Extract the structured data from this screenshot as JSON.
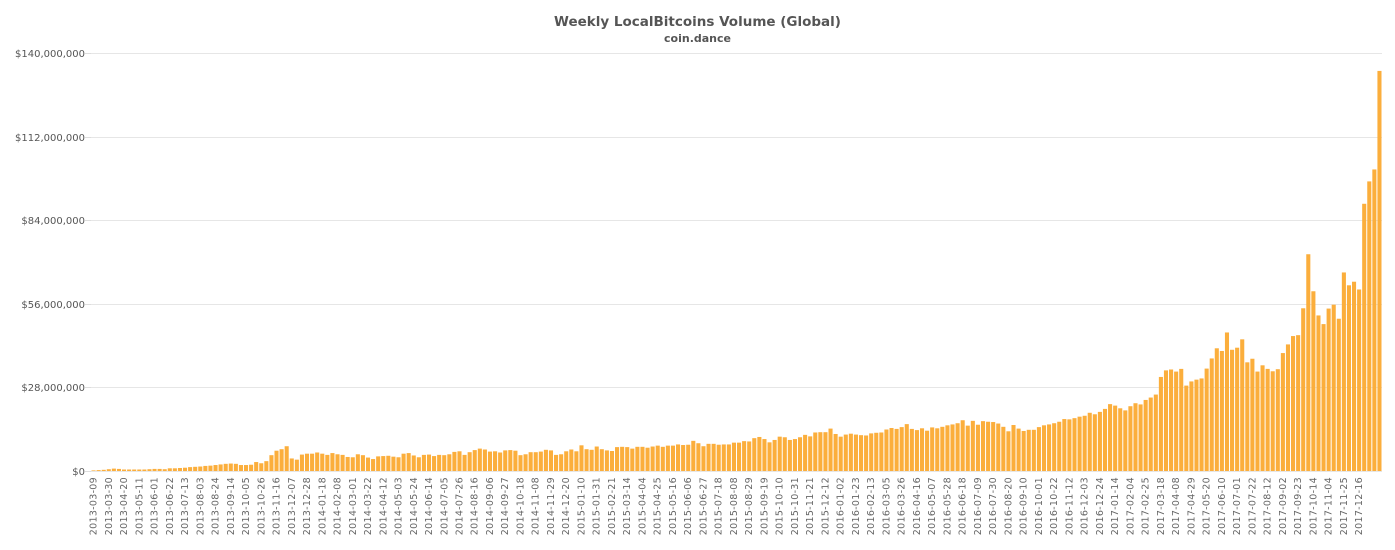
{
  "chart_data": {
    "type": "bar",
    "title": "Weekly LocalBitcoins Volume (Global)",
    "subtitle": "coin.dance",
    "xlabel": "",
    "ylabel": "",
    "ylim": [
      0,
      140000000
    ],
    "yticks": [
      0,
      28000000,
      56000000,
      84000000,
      112000000,
      140000000
    ],
    "ytick_labels": [
      "$0",
      "$28,000,000",
      "$56,000,000",
      "$84,000,000",
      "$112,000,000",
      "$140,000,000"
    ],
    "grid": true,
    "legend": "none",
    "bar_color": "#FBAE3C",
    "x_start": "2013-03-09",
    "x_interval_days": 7,
    "x_label_every": 3,
    "xtick_labels": [
      "2013-03-09",
      "2013-03-30",
      "2013-04-20",
      "2013-05-11",
      "2013-06-01",
      "2013-06-22",
      "2013-07-13",
      "2013-08-03",
      "2013-08-24",
      "2013-09-14",
      "2013-10-05",
      "2013-10-26",
      "2013-11-16",
      "2013-12-07",
      "2013-12-28",
      "2014-01-18",
      "2014-02-08",
      "2014-03-01",
      "2014-03-22",
      "2014-04-12",
      "2014-05-03",
      "2014-05-24",
      "2014-06-14",
      "2014-07-05",
      "2014-07-26",
      "2014-08-16",
      "2014-09-06",
      "2014-09-27",
      "2014-10-18",
      "2014-11-08",
      "2014-11-29",
      "2014-12-20",
      "2015-01-10",
      "2015-01-31",
      "2015-02-21",
      "2015-03-14",
      "2015-04-04",
      "2015-04-25",
      "2015-05-16",
      "2015-06-06",
      "2015-06-27",
      "2015-07-18",
      "2015-08-08",
      "2015-08-29",
      "2015-09-19",
      "2015-10-10",
      "2015-10-31",
      "2015-11-21",
      "2015-12-12",
      "2016-01-02",
      "2016-01-23",
      "2016-02-13",
      "2016-03-05",
      "2016-03-26",
      "2016-04-16",
      "2016-05-07",
      "2016-05-28",
      "2016-06-18",
      "2016-07-09",
      "2016-07-30",
      "2016-08-20",
      "2016-09-10",
      "2016-10-01",
      "2016-10-22",
      "2016-11-12",
      "2016-12-03",
      "2016-12-24",
      "2017-01-14",
      "2017-02-04",
      "2017-02-25",
      "2017-03-18",
      "2017-04-08",
      "2017-04-29",
      "2017-05-20",
      "2017-06-10",
      "2017-07-01",
      "2017-07-22",
      "2017-08-12",
      "2017-09-02",
      "2017-09-23",
      "2017-10-14",
      "2017-11-04",
      "2017-11-25",
      "2017-12-16"
    ],
    "values_millions": [
      0.2,
      0.3,
      0.4,
      0.6,
      0.8,
      0.7,
      0.5,
      0.5,
      0.5,
      0.5,
      0.5,
      0.6,
      0.7,
      0.7,
      0.6,
      0.9,
      0.9,
      1.0,
      1.1,
      1.3,
      1.4,
      1.5,
      1.7,
      1.8,
      2.0,
      2.2,
      2.4,
      2.5,
      2.4,
      2.0,
      2.0,
      2.1,
      3.0,
      2.6,
      3.3,
      5.3,
      6.8,
      7.3,
      8.3,
      4.2,
      3.8,
      5.5,
      5.8,
      5.8,
      6.2,
      5.8,
      5.4,
      6.0,
      5.6,
      5.4,
      4.7,
      4.6,
      5.6,
      5.3,
      4.5,
      4.0,
      4.9,
      5.0,
      5.1,
      4.8,
      4.6,
      5.8,
      6.0,
      5.2,
      4.6,
      5.4,
      5.5,
      5.0,
      5.4,
      5.3,
      5.6,
      6.4,
      6.6,
      5.4,
      6.3,
      7.0,
      7.5,
      7.2,
      6.5,
      6.6,
      6.2,
      6.9,
      7.0,
      6.8,
      5.3,
      5.6,
      6.3,
      6.3,
      6.5,
      7.1,
      6.9,
      5.4,
      5.6,
      6.6,
      7.2,
      6.6,
      8.6,
      7.3,
      7.1,
      8.2,
      7.3,
      6.9,
      6.7,
      8.0,
      8.1,
      8.0,
      7.5,
      8.1,
      8.1,
      7.8,
      8.2,
      8.5,
      8.1,
      8.5,
      8.5,
      8.9,
      8.7,
      8.8,
      10.1,
      9.3,
      8.3,
      9.1,
      9.1,
      8.8,
      8.9,
      8.9,
      9.5,
      9.5,
      10.0,
      9.9,
      11.0,
      11.4,
      10.7,
      9.6,
      10.4,
      11.5,
      11.3,
      10.4,
      10.7,
      11.3,
      12.1,
      11.6,
      12.9,
      13.0,
      13.0,
      14.2,
      12.4,
      11.5,
      12.2,
      12.5,
      12.2,
      12.0,
      11.9,
      12.6,
      12.8,
      12.9,
      13.9,
      14.4,
      14.1,
      14.7,
      15.7,
      14.1,
      13.7,
      14.3,
      13.5,
      14.6,
      14.3,
      14.8,
      15.3,
      15.6,
      16.0,
      17.0,
      15.2,
      16.8,
      15.5,
      16.7,
      16.5,
      16.4,
      15.9,
      14.8,
      13.3,
      15.4,
      14.2,
      13.4,
      13.8,
      13.8,
      14.7,
      15.3,
      15.6,
      16.0,
      16.5,
      17.4,
      17.3,
      17.7,
      18.2,
      18.5,
      19.5,
      19.0,
      19.8,
      20.8,
      22.4,
      21.9,
      21.0,
      20.3,
      21.7,
      22.7,
      22.3,
      23.8,
      24.6,
      25.6,
      31.5,
      33.7,
      34.0,
      33.3,
      34.2,
      28.6,
      30.0,
      30.6,
      31.0,
      34.3,
      37.7,
      41.1,
      40.2,
      46.4,
      40.6,
      41.3,
      44.1,
      36.4,
      37.6,
      33.3,
      35.4,
      34.2,
      33.4,
      34.1,
      39.5,
      42.4,
      45.2,
      45.5,
      54.5,
      72.6,
      60.2,
      52.1,
      49.2,
      54.4,
      55.7,
      51.0,
      66.5,
      62.2,
      63.4,
      60.8,
      89.5,
      97.0,
      101.0,
      134.0
    ]
  }
}
